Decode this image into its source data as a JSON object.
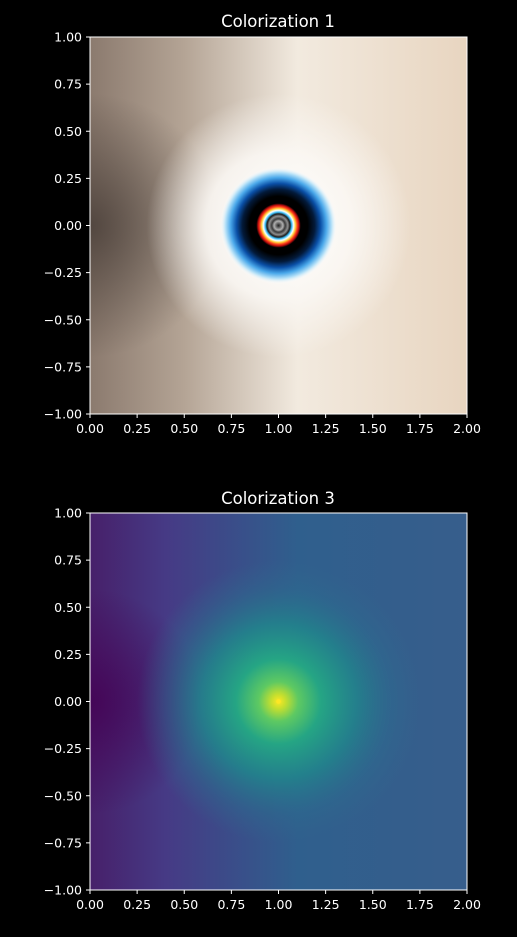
{
  "figure": {
    "background": "#000000",
    "text_color": "#ffffff"
  },
  "chart_data": [
    {
      "type": "heatmap",
      "title": "Colorization 1",
      "xlim": [
        0.0,
        2.0
      ],
      "ylim": [
        -1.0,
        1.0
      ],
      "x_ticks": [
        "0.00",
        "0.25",
        "0.50",
        "0.75",
        "1.00",
        "1.25",
        "1.50",
        "1.75",
        "2.00"
      ],
      "y_ticks": [
        "1.00",
        "0.75",
        "0.50",
        "0.25",
        "0.00",
        "−0.25",
        "−0.50",
        "−0.75",
        "−1.00"
      ],
      "x_tick_values": [
        0,
        0.25,
        0.5,
        0.75,
        1,
        1.25,
        1.5,
        1.75,
        2
      ],
      "y_tick_values": [
        1,
        0.75,
        0.5,
        0.25,
        0,
        -0.25,
        -0.5,
        -0.75,
        -1
      ],
      "colormap_description": "cyclic bright rings around a singularity at (1, 0); warm off-white far field, darker brown near x=0",
      "singularity": [
        1.0,
        0.0
      ],
      "grid": false
    },
    {
      "type": "heatmap",
      "title": "Colorization 3",
      "xlim": [
        0.0,
        2.0
      ],
      "ylim": [
        -1.0,
        1.0
      ],
      "x_ticks": [
        "0.00",
        "0.25",
        "0.50",
        "0.75",
        "1.00",
        "1.25",
        "1.50",
        "1.75",
        "2.00"
      ],
      "y_ticks": [
        "1.00",
        "0.75",
        "0.50",
        "0.25",
        "0.00",
        "−0.25",
        "−0.50",
        "−0.75",
        "−1.00"
      ],
      "x_tick_values": [
        0,
        0.25,
        0.5,
        0.75,
        1,
        1.25,
        1.5,
        1.75,
        2
      ],
      "y_tick_values": [
        1,
        0.75,
        0.5,
        0.25,
        0,
        -0.25,
        -0.5,
        -0.75,
        -1
      ],
      "colormap": "viridis-like",
      "colormap_description": "bright yellow point at (1, 0) fading through green to blue; purple near x=0",
      "singularity": [
        1.0,
        0.0
      ],
      "grid": false
    }
  ]
}
